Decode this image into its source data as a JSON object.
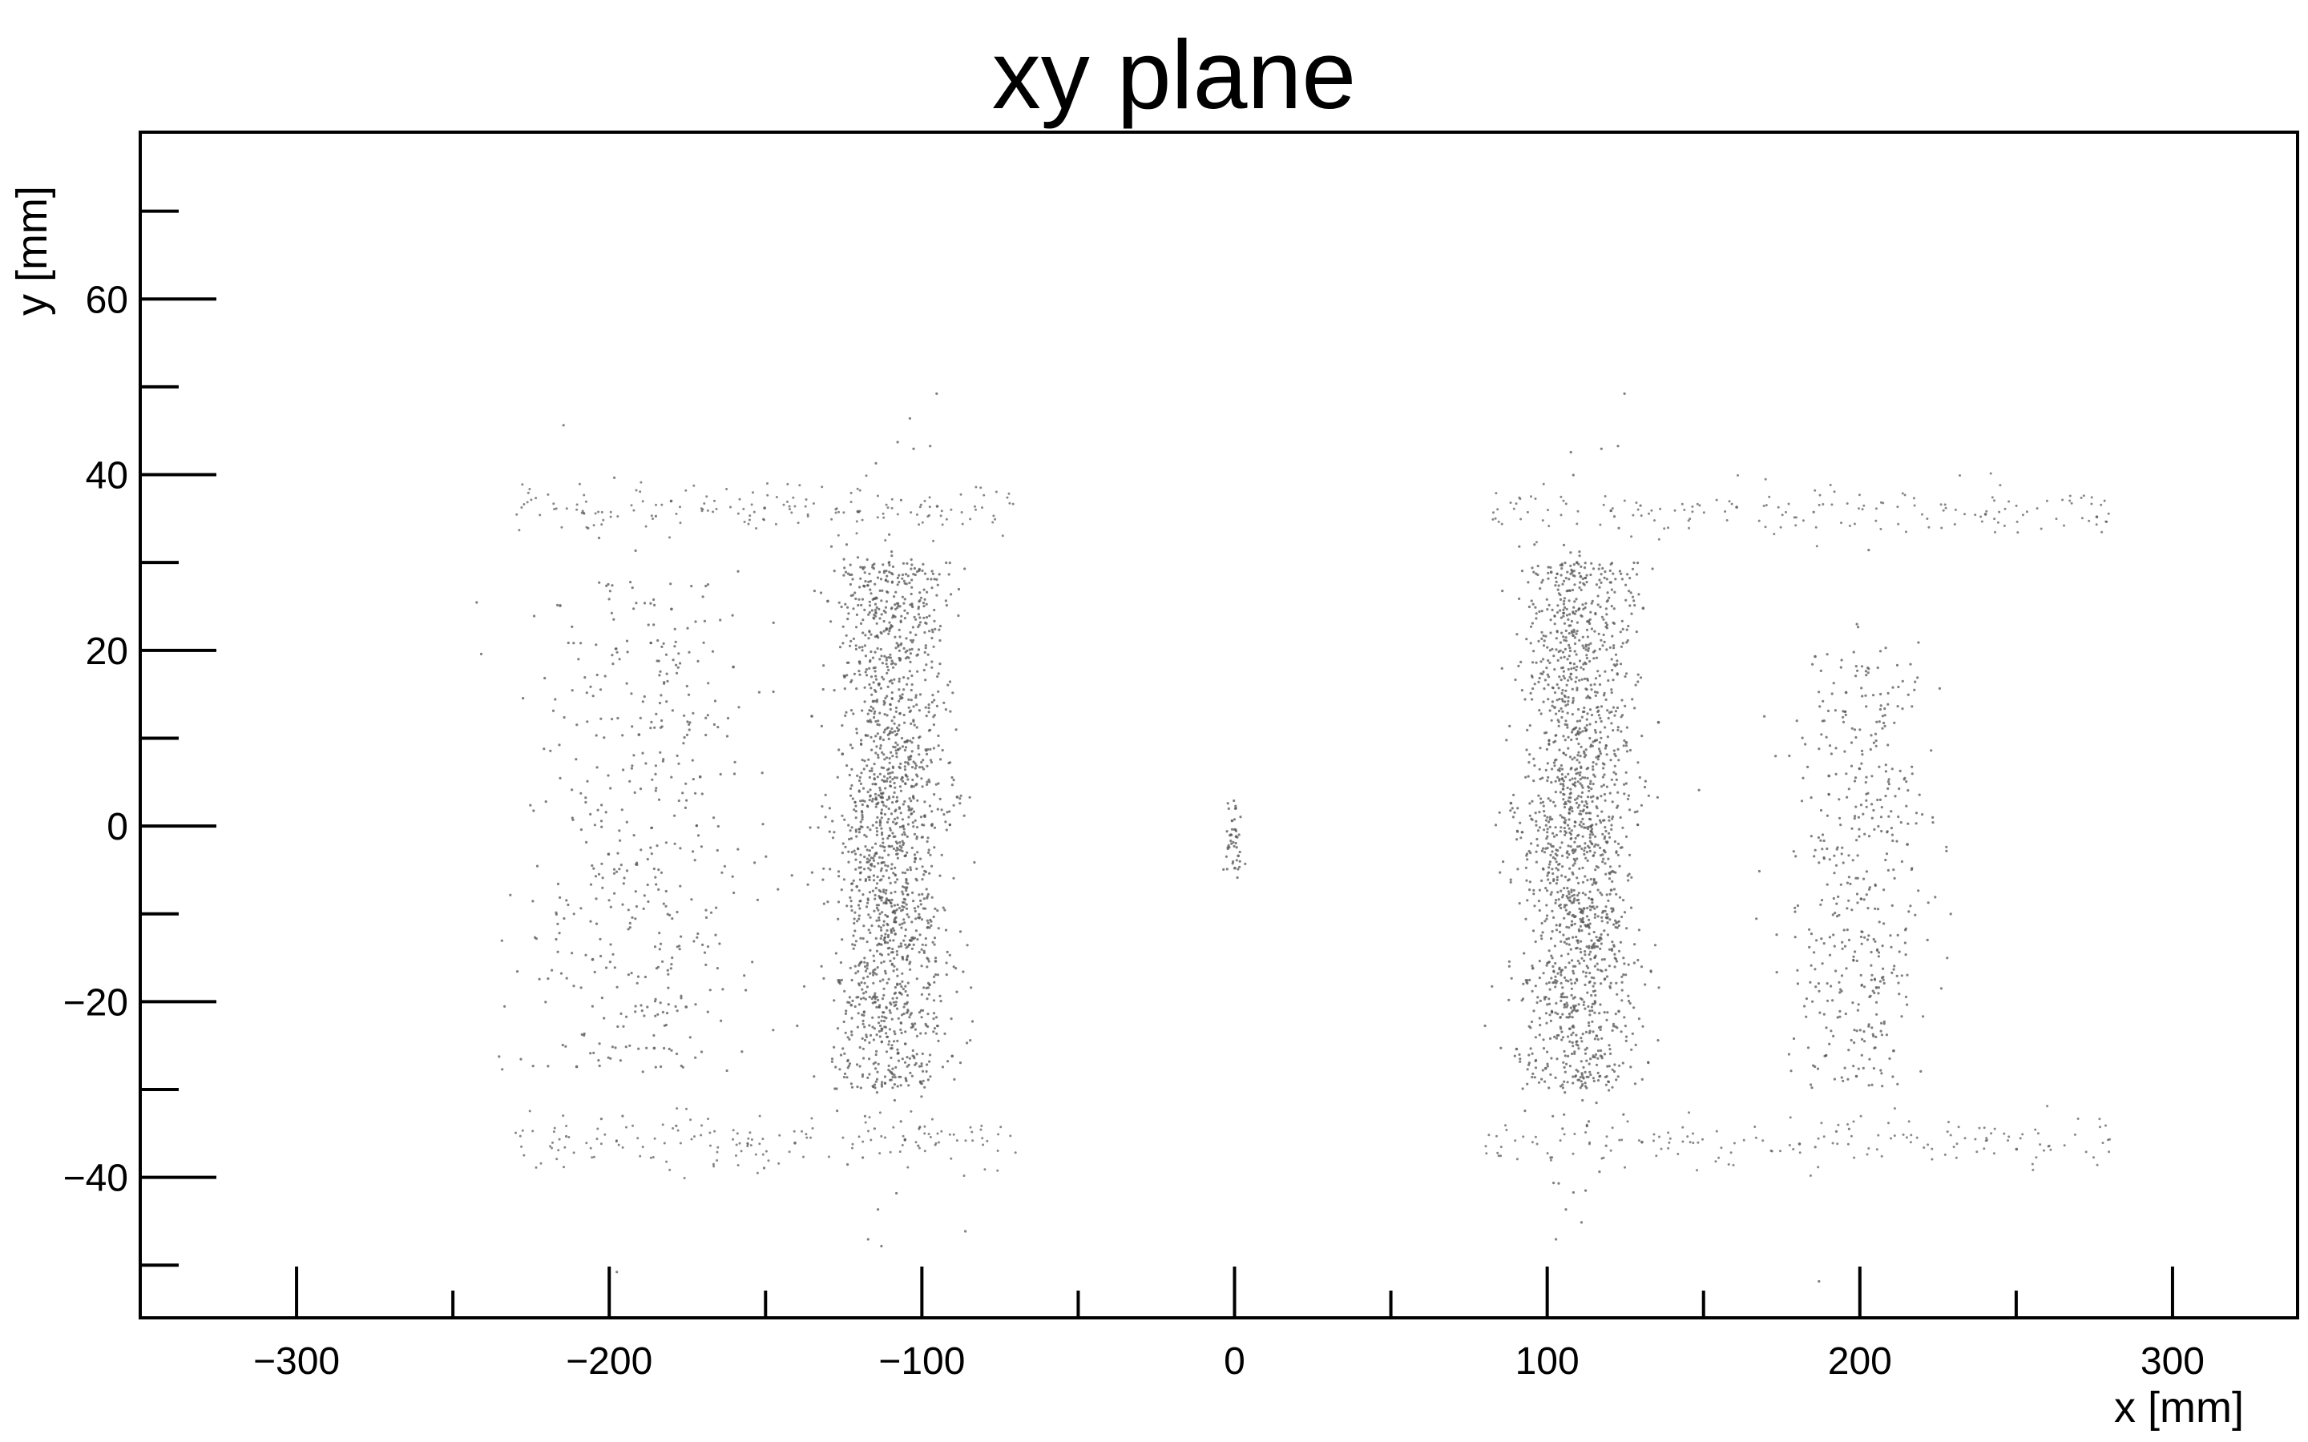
{
  "chart_data": {
    "type": "scatter",
    "title": "xy plane",
    "xlabel": "x [mm]",
    "ylabel": "y [mm]",
    "xlim": [
      -350,
      340
    ],
    "ylim": [
      -56,
      79
    ],
    "x_major_ticks": [
      -300,
      -200,
      -100,
      0,
      100,
      200,
      300
    ],
    "x_minor_ticks": [
      -350,
      -250,
      -150,
      -50,
      50,
      150,
      250
    ],
    "y_major_ticks": [
      -40,
      -20,
      0,
      20,
      40,
      60
    ],
    "y_minor_ticks": [
      -50,
      -30,
      -10,
      10,
      30,
      50,
      70
    ],
    "x_tick_labels": [
      "−300",
      "−200",
      "−100",
      "0",
      "100",
      "200",
      "300"
    ],
    "y_tick_labels": [
      "−40",
      "−20",
      "0",
      "20",
      "40",
      "60"
    ],
    "grid": false,
    "legend": "none",
    "point_color": "#555555",
    "series": [
      {
        "description_clusters": [
          {
            "center_x": -110,
            "center_y": 0,
            "spread_x": 12,
            "spread_y": 30,
            "density": "high"
          },
          {
            "center_x": -190,
            "center_y": 0,
            "spread_x": 25,
            "spread_y": 28,
            "density": "low"
          },
          {
            "center_x": 110,
            "center_y": 0,
            "spread_x": 12,
            "spread_y": 30,
            "density": "high"
          },
          {
            "center_x": 200,
            "center_y": -5,
            "spread_x": 15,
            "spread_y": 25,
            "density": "low"
          },
          {
            "center_x": 0,
            "center_y": -1,
            "spread_x": 2,
            "spread_y": 4,
            "density": "small"
          }
        ],
        "bands": [
          {
            "x_range": [
              -230,
              -70
            ],
            "y": 36
          },
          {
            "x_range": [
              -230,
              -70
            ],
            "y": -36
          },
          {
            "x_range": [
              80,
              280
            ],
            "y": 36
          },
          {
            "x_range": [
              80,
              280
            ],
            "y": -36
          }
        ],
        "points": [
          [
            -110.2,
            22.5
          ],
          [
            -108.5,
            -12.3
          ],
          [
            -112.0,
            5.1
          ],
          [
            -105.3,
            -24.8
          ],
          [
            -115.6,
            14.2
          ],
          [
            -102.1,
            -3.7
          ],
          [
            -118.4,
            27.3
          ],
          [
            -109.7,
            -28.1
          ],
          [
            -113.3,
            0.4
          ],
          [
            -107.0,
            18.9
          ],
          [
            -125.4,
            8.2
          ],
          [
            -95.6,
            -15.4
          ],
          [
            -130.1,
            25.6
          ],
          [
            -90.3,
            -26.2
          ],
          [
            -120.8,
            -6.9
          ],
          [
            -135.2,
            12.5
          ],
          [
            -88.7,
            3.3
          ],
          [
            -100.9,
            29.1
          ],
          [
            -122.6,
            -20.4
          ],
          [
            -111.4,
            -8.8
          ],
          [
            -190.5,
            10.4
          ],
          [
            -205.3,
            -15.2
          ],
          [
            -180.1,
            24.7
          ],
          [
            -215.7,
            25.1
          ],
          [
            -175.4,
            -20.6
          ],
          [
            -200.2,
            -3.2
          ],
          [
            -185.6,
            -25.3
          ],
          [
            -170.9,
            5.6
          ],
          [
            -210.4,
            -27.4
          ],
          [
            -160.3,
            18.1
          ],
          [
            108.3,
            21.7
          ],
          [
            112.5,
            -11.4
          ],
          [
            105.1,
            4.2
          ],
          [
            115.8,
            -23.9
          ],
          [
            102.4,
            13.5
          ],
          [
            118.2,
            -2.8
          ],
          [
            110.7,
            28.4
          ],
          [
            99.5,
            -27.6
          ],
          [
            114.0,
            -0.6
          ],
          [
            107.6,
            17.3
          ],
          [
            125.3,
            9.5
          ],
          [
            95.4,
            -16.2
          ],
          [
            130.7,
            24.8
          ],
          [
            90.2,
            -25.4
          ],
          [
            120.5,
            -7.3
          ],
          [
            135.6,
            11.8
          ],
          [
            88.4,
            2.6
          ],
          [
            101.3,
            28.9
          ],
          [
            122.9,
            -21.1
          ],
          [
            111.8,
            -9.4
          ],
          [
            195.6,
            15.2
          ],
          [
            205.3,
            -18.4
          ],
          [
            190.1,
            5.7
          ],
          [
            210.8,
            -25.6
          ],
          [
            200.4,
            -8.3
          ],
          [
            185.7,
            19.3
          ],
          [
            215.2,
            -2.1
          ],
          [
            198.9,
            -28.5
          ],
          [
            0.5,
            -1.2
          ],
          [
            -0.8,
            0.6
          ],
          [
            1.2,
            -3.4
          ],
          [
            0.1,
            -4.8
          ],
          [
            -150.3,
            36.2
          ],
          [
            -120.5,
            35.8
          ],
          [
            -95.1,
            36.4
          ],
          [
            -140.6,
            -36.1
          ],
          [
            -105.4,
            -35.7
          ],
          [
            -180.2,
            37.0
          ],
          [
            120.4,
            35.9
          ],
          [
            160.6,
            36.3
          ],
          [
            240.2,
            35.5
          ],
          [
            275.8,
            35.2
          ],
          [
            130.3,
            -36.0
          ],
          [
            180.7,
            -36.2
          ],
          [
            250.1,
            -36.8
          ]
        ]
      }
    ]
  }
}
